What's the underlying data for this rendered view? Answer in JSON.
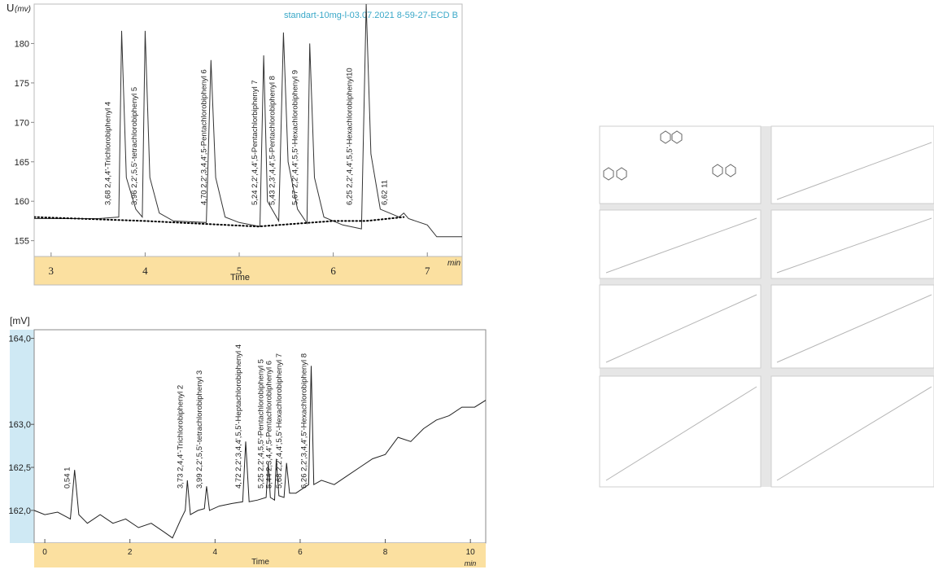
{
  "chart_data": [
    {
      "type": "line",
      "title": "standart-10mg-l-03.07.2021  8-59-27-ECD B",
      "ylabel": "U",
      "yunit": "(mv)",
      "xlabel": "Time",
      "xunit": "min",
      "xlim": [
        2.82,
        7.37
      ],
      "xticks": [
        3,
        4,
        5,
        6,
        7
      ],
      "ylim": [
        153,
        185
      ],
      "yticks": [
        155,
        160,
        165,
        170,
        175,
        180
      ],
      "series": [
        {
          "color": "#333333",
          "style": "solid",
          "x": [
            2.82,
            3.5,
            3.72,
            3.75,
            3.8,
            3.9,
            3.97,
            4.0,
            4.05,
            4.15,
            4.3,
            4.65,
            4.7,
            4.75,
            4.85,
            5.0,
            5.22,
            5.26,
            5.3,
            5.42,
            5.47,
            5.52,
            5.62,
            5.72,
            5.75,
            5.8,
            5.9,
            6.1,
            6.3,
            6.35,
            6.4,
            6.5,
            6.7,
            6.75,
            6.8,
            7.0,
            7.1,
            7.37
          ],
          "values": [
            157.8,
            157.8,
            158,
            181.6,
            163,
            159,
            158,
            181.6,
            163,
            158.5,
            157.5,
            157.3,
            177.9,
            163,
            158,
            157.3,
            156.8,
            178.5,
            160,
            157.5,
            181.4,
            165,
            159,
            157.2,
            180,
            163,
            158,
            157,
            156.5,
            185,
            166,
            159,
            158,
            158.5,
            157.8,
            157,
            155.5,
            155.5
          ]
        },
        {
          "color": "#000000",
          "style": "dotted",
          "x": [
            2.82,
            4.0,
            5.2,
            6.0,
            6.35,
            6.75
          ],
          "values": [
            158,
            157.5,
            156.8,
            157.5,
            157.5,
            158
          ]
        }
      ],
      "annotations": [
        {
          "text": "3,68  2,4,4'-Trichlorobiphenyl  4",
          "x": 3.68
        },
        {
          "text": "3,96  2,2',5,5'-tetrachlorobiphenyl 5",
          "x": 3.96
        },
        {
          "text": "4,70 2,2',3,4,4',5-Pentachlorobiphenyl 6",
          "x": 4.7
        },
        {
          "text": "5,24 2,2',4,4',5-Pentachlorbiphenyl  7",
          "x": 5.24
        },
        {
          "text": "5,43 2,3',4,4',5-Pentachlorobiphenyl 8",
          "x": 5.43
        },
        {
          "text": "5,67 2,2',4,4',5,5'-Hexachlorobiphenyl 9",
          "x": 5.67
        },
        {
          "text": "6,25 2,2',4,4',5,5'-Hexachlorobiphenyl10",
          "x": 6.25
        },
        {
          "text": "6,62  11",
          "x": 6.62
        }
      ]
    },
    {
      "type": "line",
      "ylabel": "[mV]",
      "xlabel": "Time",
      "xunit": "min",
      "xlim": [
        -0.25,
        10.36
      ],
      "xticks": [
        0,
        2,
        4,
        6,
        8,
        10
      ],
      "ylim": [
        161.62,
        164.1
      ],
      "yticks": [
        {
          "value": 164,
          "label": "164,0"
        },
        {
          "value": 163,
          "label": "163,0"
        },
        {
          "value": 162.5,
          "label": "162,5"
        },
        {
          "value": 162,
          "label": "162,0"
        }
      ],
      "series": [
        {
          "color": "#222222",
          "style": "solid",
          "x": [
            -0.25,
            0,
            0.3,
            0.6,
            0.7,
            0.8,
            1.0,
            1.3,
            1.6,
            1.9,
            2.2,
            2.5,
            2.8,
            3.0,
            3.2,
            3.3,
            3.35,
            3.42,
            3.6,
            3.75,
            3.8,
            3.87,
            4.1,
            4.4,
            4.65,
            4.72,
            4.8,
            5.0,
            5.2,
            5.25,
            5.3,
            5.4,
            5.44,
            5.5,
            5.62,
            5.68,
            5.75,
            5.9,
            6.05,
            6.2,
            6.26,
            6.32,
            6.5,
            6.8,
            7.1,
            7.4,
            7.7,
            8.0,
            8.3,
            8.6,
            8.9,
            9.2,
            9.5,
            9.8,
            10.1,
            10.36
          ],
          "values": [
            162.0,
            161.95,
            161.98,
            161.9,
            162.47,
            161.95,
            161.85,
            161.95,
            161.85,
            161.9,
            161.8,
            161.85,
            161.75,
            161.68,
            161.9,
            162.0,
            162.35,
            161.95,
            162.0,
            162.02,
            162.28,
            162.0,
            162.05,
            162.08,
            162.1,
            162.8,
            162.1,
            162.12,
            162.15,
            162.55,
            162.15,
            162.12,
            162.6,
            162.17,
            162.15,
            162.55,
            162.2,
            162.2,
            162.25,
            162.3,
            163.68,
            162.3,
            162.35,
            162.3,
            162.4,
            162.5,
            162.6,
            162.65,
            162.85,
            162.8,
            162.95,
            163.05,
            163.1,
            163.2,
            163.2,
            163.28
          ]
        }
      ],
      "annotations": [
        {
          "text": "0,54  1",
          "x": 0.7
        },
        {
          "text": "3,73 2,4,4'-Trichlorobiphenyl 2",
          "x": 3.35
        },
        {
          "text": "3,99 2,2',5,5'-tetrachlorobiphenyl 3",
          "x": 3.8
        },
        {
          "text": "4,72 2,2',3,4,4',5,5'-Heptachlorobiphenyl 4",
          "x": 4.72
        },
        {
          "text": "5,25 2,2',4,5,5'-Pentachlorobiphenyl 5",
          "x": 5.25
        },
        {
          "text": "5,44 2,3,4,4',5-Pentachlorobiphenyl 6",
          "x": 5.44
        },
        {
          "text": "5,68 2,2',4,4',5,5'-Hexachlorobiphenyl 7",
          "x": 5.68
        },
        {
          "text": "6,26 2,2',3,4,4',5'-Hexachlorobiphenyl 8",
          "x": 6.26
        }
      ]
    }
  ]
}
